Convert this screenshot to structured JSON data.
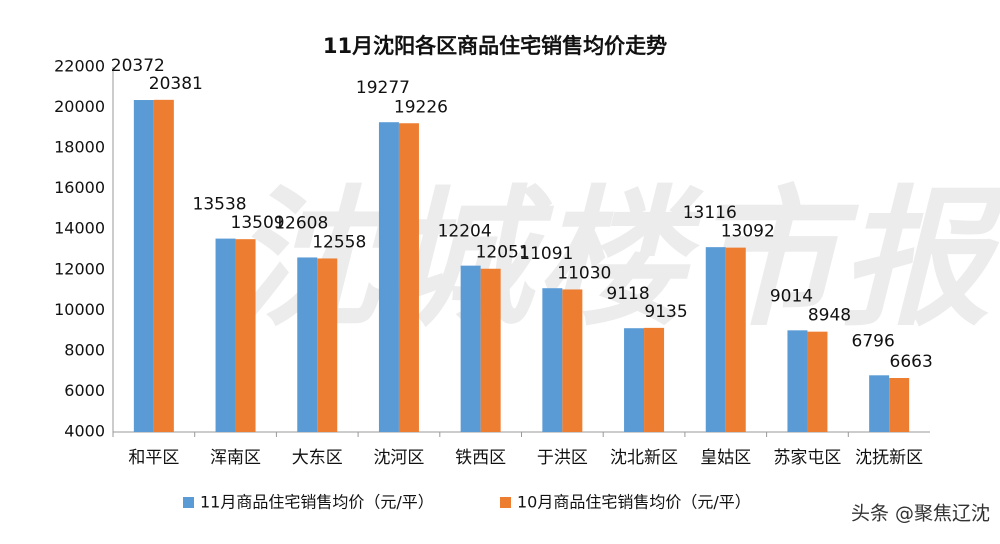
{
  "chart_data": {
    "type": "bar",
    "title": "11月沈阳各区商品住宅销售均价走势",
    "categories": [
      "和平区",
      "浑南区",
      "大东区",
      "沈河区",
      "铁西区",
      "于洪区",
      "沈北新区",
      "皇姑区",
      "苏家屯区",
      "沈抚新区"
    ],
    "series": [
      {
        "name": "11月商品住宅销售均价（元/平）",
        "color": "#5b9bd5",
        "values": [
          20372,
          13538,
          12608,
          19277,
          12204,
          11091,
          9118,
          13116,
          9014,
          6796
        ]
      },
      {
        "name": "10月商品住宅销售均价（元/平）",
        "color": "#ed7d31",
        "values": [
          20381,
          13509,
          12558,
          19226,
          12051,
          11030,
          9135,
          13092,
          8948,
          6663
        ]
      }
    ],
    "ylim": [
      4000,
      22000
    ],
    "yticks": [
      4000,
      6000,
      8000,
      10000,
      12000,
      14000,
      16000,
      18000,
      20000,
      22000
    ],
    "grid": false,
    "legend": "bottom",
    "annotations": [
      "沈城楼市报",
      "头条 @聚焦辽沈"
    ]
  }
}
